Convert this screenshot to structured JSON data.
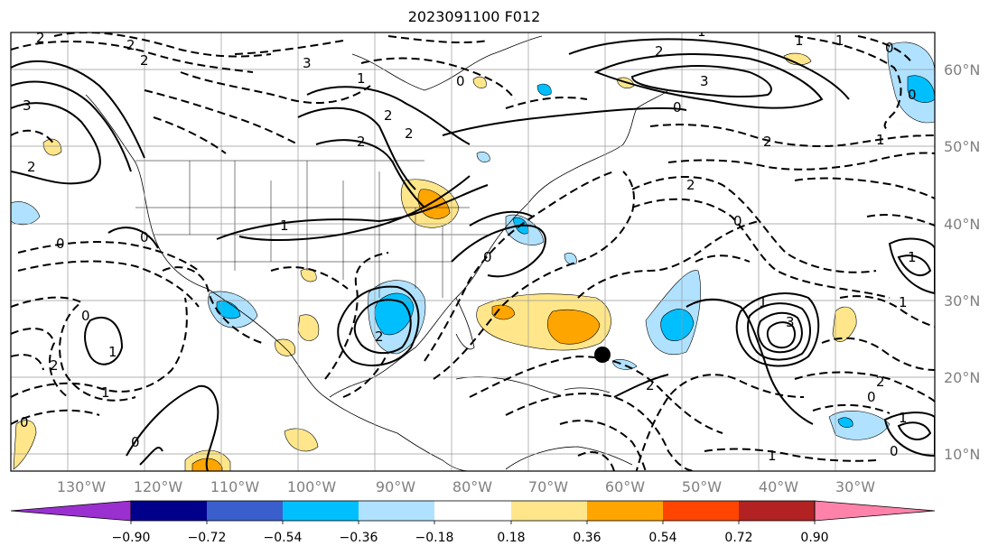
{
  "title": "2023091100 F012",
  "lon_labels": [
    "130°W",
    "120°W",
    "110°W",
    "100°W",
    "90°W",
    "80°W",
    "70°W",
    "60°W",
    "50°W",
    "40°W",
    "30°W"
  ],
  "lat_labels": [
    "60°N",
    "50°N",
    "40°N",
    "30°N",
    "20°N",
    "10°N"
  ],
  "colorbar": {
    "ticks": [
      "−0.90",
      "−0.72",
      "−0.54",
      "−0.36",
      "−0.18",
      "0.18",
      "0.36",
      "0.54",
      "0.72",
      "0.90"
    ],
    "colors": [
      "#9b30d0",
      "#00008b",
      "#3a5fcd",
      "#00bfff",
      "#b0e2ff",
      "#ffffff",
      "#ffe68a",
      "#ffa500",
      "#ff4500",
      "#b22222",
      "#ff82ab"
    ]
  },
  "contour_labels": {
    "positive": [
      "2",
      "2",
      "3",
      "3",
      "2",
      "2",
      "2",
      "2",
      "1",
      "1",
      "1",
      "1",
      "3",
      "3",
      "2",
      "1",
      "1",
      "1"
    ],
    "negative": [
      "2",
      "2",
      "1",
      "0",
      "0",
      "0",
      "0",
      "0",
      "0",
      "0",
      "0",
      "0",
      "0",
      "0",
      "1",
      "1",
      "1",
      "2",
      "2",
      "2",
      "2",
      "2",
      "2",
      "1",
      "1",
      "0",
      "0"
    ]
  },
  "marker": "storm-center-dot"
}
